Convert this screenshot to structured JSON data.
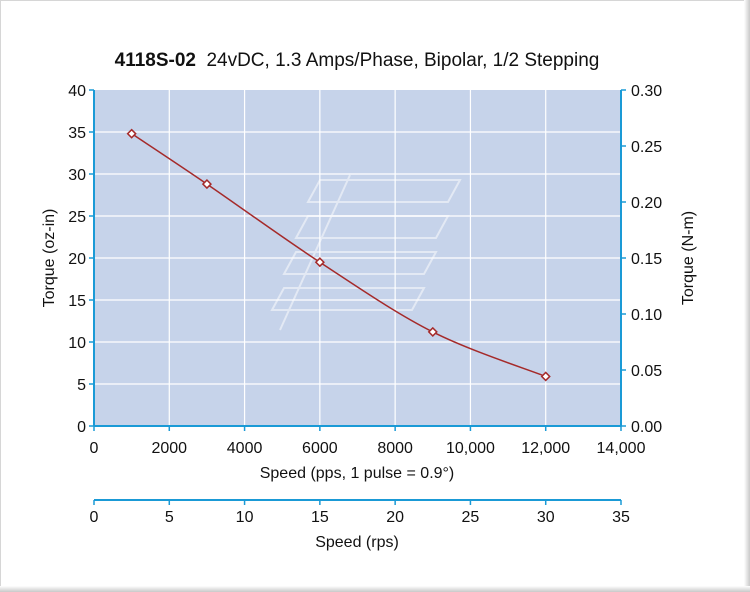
{
  "chart_data": {
    "type": "line",
    "title_model": "4118S-02",
    "title": "24vDC, 1.3 Amps/Phase, Bipolar, 1/2 Stepping",
    "xlabel": "Speed (pps, 1 pulse = 0.9°)",
    "ylabel_left": "Torque (oz-in)",
    "ylabel_right": "Torque (N-m)",
    "x2label": "Speed (rps)",
    "xlim": [
      0,
      14000
    ],
    "ylim": [
      0,
      40
    ],
    "y2lim": [
      0,
      0.3
    ],
    "x2lim": [
      0,
      35
    ],
    "x_ticks": [
      "0",
      "2000",
      "4000",
      "6000",
      "8000",
      "10,000",
      "12,000",
      "14,000"
    ],
    "y_ticks": [
      "0",
      "5",
      "10",
      "15",
      "20",
      "25",
      "30",
      "35",
      "40"
    ],
    "y2_ticks": [
      "0.00",
      "0.05",
      "0.10",
      "0.15",
      "0.20",
      "0.25",
      "0.30"
    ],
    "x2_ticks": [
      "0",
      "5",
      "10",
      "15",
      "20",
      "25",
      "30",
      "35"
    ],
    "grid": true,
    "series": [
      {
        "x": [
          1000,
          3000,
          6000,
          9000,
          12000
        ],
        "values": [
          34.8,
          28.8,
          19.5,
          11.2,
          5.9
        ]
      }
    ],
    "colors": {
      "plot_bg": "#c6d3ea",
      "axis": "#1a9ad6",
      "grid": "#ffffff",
      "line": "#a52a2a",
      "marker": "#a52a2a",
      "watermark": "#e3e9f4"
    }
  }
}
